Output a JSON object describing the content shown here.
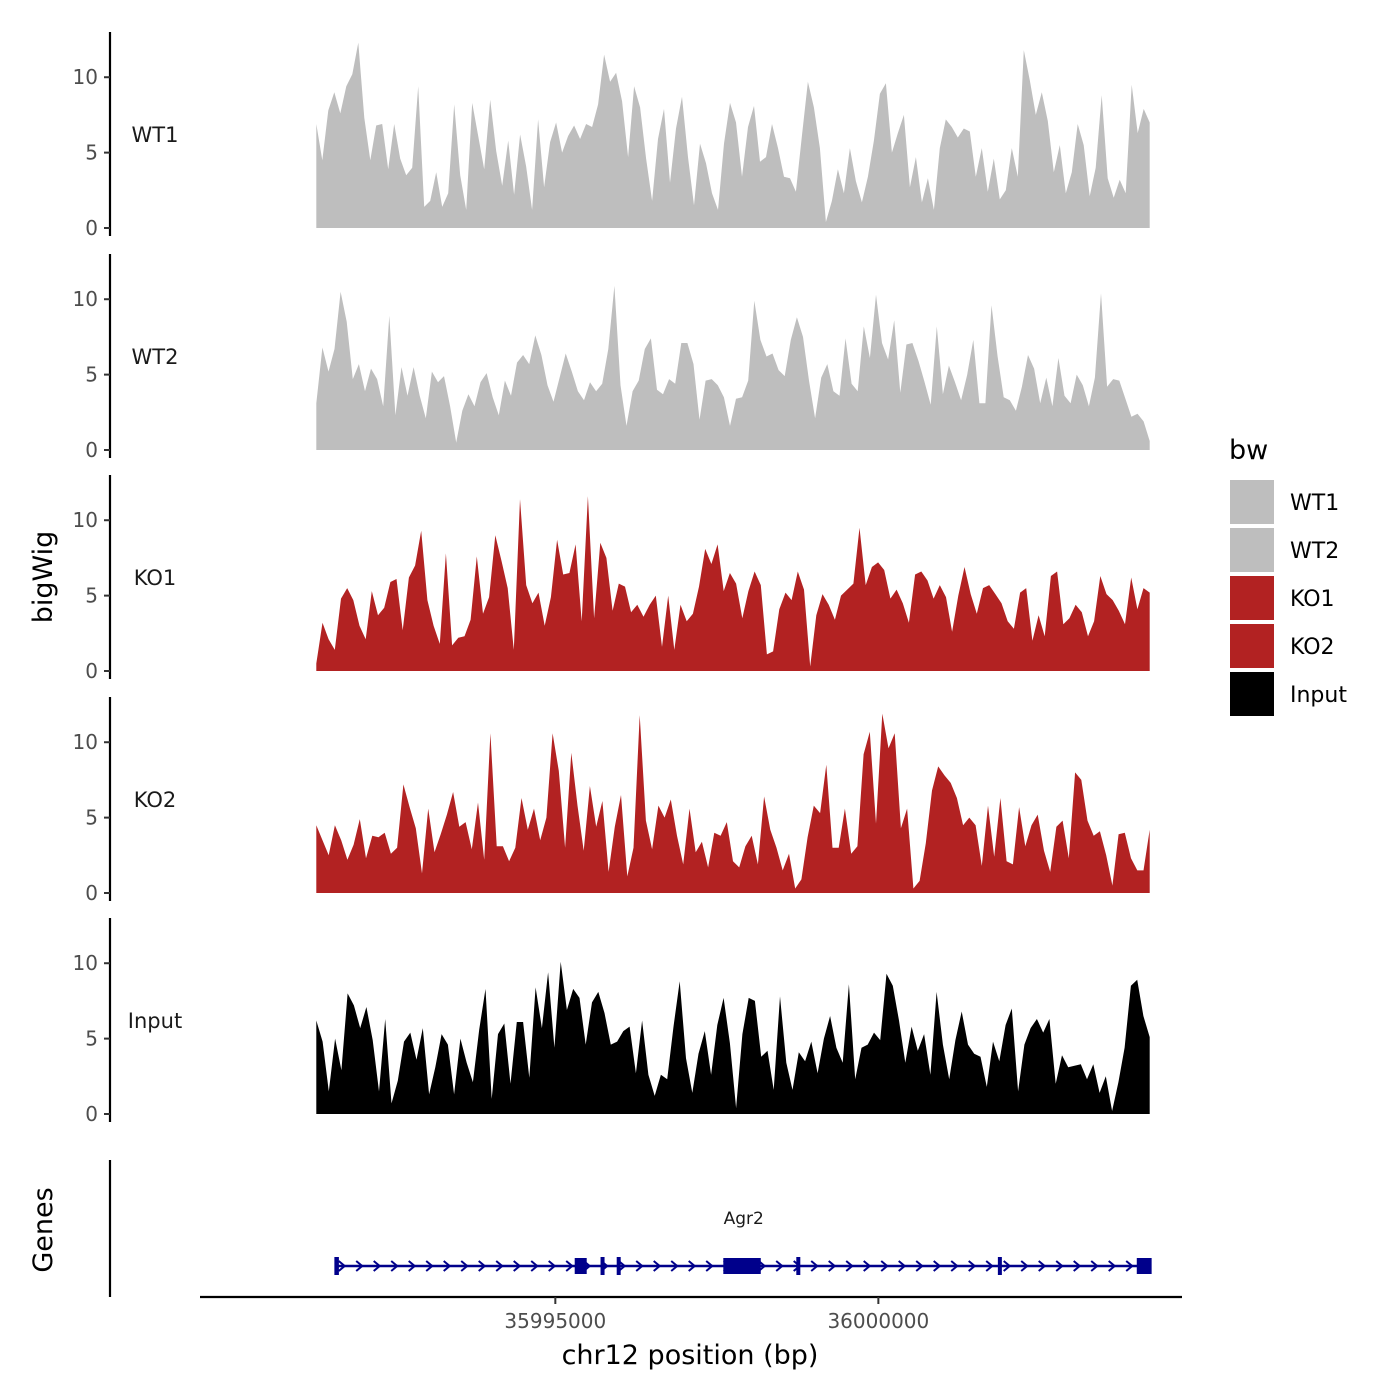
{
  "chart_data": {
    "type": "area",
    "x_unit": "chr12 position (bp)",
    "xlim": [
      35989500,
      36004700
    ],
    "region": [
      35991300,
      36004200
    ],
    "ylim": [
      0,
      13
    ],
    "y_ticks": [
      0,
      5,
      10
    ],
    "x_ticks": [
      35995000,
      36000000
    ],
    "x_tick_labels": [
      "35995000",
      "36000000"
    ],
    "xlabel": "chr12 position (bp)",
    "ylabel_tracks": "bigWig",
    "ylabel_genes": "Genes",
    "legend": {
      "title": "bw",
      "entries": [
        {
          "label": "WT1",
          "color": "#bebebe"
        },
        {
          "label": "WT2",
          "color": "#bebebe"
        },
        {
          "label": "KO1",
          "color": "#b22222"
        },
        {
          "label": "KO2",
          "color": "#b22222"
        },
        {
          "label": "Input",
          "color": "#000000"
        }
      ]
    },
    "series": [
      {
        "name": "WT1",
        "color": "#bebebe",
        "values": [
          6.9,
          4.5,
          7.8,
          9.0,
          7.6,
          9.4,
          10.2,
          12.3,
          7.3,
          4.5,
          6.8,
          6.9,
          3.9,
          6.9,
          4.6,
          3.5,
          4.0,
          9.4,
          1.4,
          1.8,
          3.7,
          1.4,
          2.3,
          8.2,
          3.5,
          1.2,
          8.3,
          6.1,
          3.9,
          8.5,
          5.1,
          2.8,
          5.8,
          2.2,
          6.2,
          4.1,
          1.2,
          7.2,
          2.7,
          5.7,
          7.0,
          5.0,
          6.1,
          6.8,
          5.9,
          6.9,
          6.7,
          8.2,
          11.5,
          9.7,
          10.3,
          8.4,
          4.7,
          9.4,
          8.0,
          4.6,
          1.8,
          5.9,
          7.9,
          3.0,
          6.6,
          8.7,
          4.7,
          1.5,
          5.6,
          4.3,
          2.3,
          1.2,
          5.6,
          8.3,
          7.0,
          3.4,
          6.7,
          8.1,
          4.4,
          4.7,
          6.9,
          5.3,
          3.4,
          3.3,
          2.4,
          6.1,
          9.7,
          8.0,
          5.3,
          0.4,
          1.8,
          3.9,
          2.3,
          5.3,
          3.1,
          1.7,
          3.4,
          5.8,
          8.9,
          9.6,
          5.0,
          6.3,
          7.5,
          2.7,
          4.7,
          1.7,
          3.3,
          1.2,
          5.3,
          7.2,
          6.7,
          6.0,
          6.6,
          6.4,
          3.4,
          5.3,
          2.4,
          4.6,
          1.9,
          2.5,
          5.3,
          3.4,
          11.8,
          9.8,
          7.5,
          9.0,
          7.1,
          3.7,
          5.5,
          2.3,
          3.7,
          6.9,
          5.5,
          2.1,
          4.0,
          8.8,
          3.3,
          2.0,
          3.2,
          2.3,
          9.5,
          6.3,
          7.9,
          7.0
        ]
      },
      {
        "name": "WT2",
        "color": "#bebebe",
        "values": [
          3.1,
          6.8,
          5.2,
          6.7,
          10.5,
          8.5,
          4.7,
          5.7,
          3.9,
          5.4,
          4.7,
          2.9,
          8.9,
          2.3,
          5.5,
          3.6,
          5.5,
          3.6,
          2.1,
          5.2,
          4.5,
          4.9,
          2.9,
          0.5,
          2.6,
          3.7,
          2.9,
          4.5,
          5.1,
          3.5,
          2.3,
          4.6,
          3.6,
          5.8,
          6.3,
          5.7,
          7.6,
          6.3,
          4.3,
          3.2,
          4.8,
          6.4,
          5.2,
          3.9,
          3.3,
          4.5,
          3.9,
          4.4,
          6.7,
          10.9,
          4.3,
          1.6,
          3.9,
          4.6,
          6.7,
          7.4,
          4.0,
          3.7,
          4.7,
          4.4,
          7.1,
          7.1,
          5.7,
          2.0,
          4.6,
          4.7,
          4.3,
          3.5,
          1.6,
          3.4,
          3.5,
          4.6,
          9.9,
          7.3,
          6.2,
          6.4,
          5.3,
          4.9,
          7.3,
          8.8,
          7.5,
          4.6,
          2.1,
          4.8,
          5.7,
          3.9,
          3.6,
          7.4,
          4.4,
          3.9,
          8.2,
          6.1,
          10.3,
          7.1,
          6.0,
          8.6,
          3.8,
          7.0,
          7.1,
          5.9,
          4.5,
          3.0,
          8.2,
          3.7,
          5.6,
          4.5,
          3.3,
          5.0,
          7.3,
          3.1,
          3.1,
          9.6,
          6.2,
          3.5,
          3.3,
          2.6,
          4.2,
          6.3,
          5.4,
          3.1,
          4.8,
          2.9,
          6.1,
          3.6,
          3.1,
          5.0,
          4.3,
          2.9,
          4.8,
          10.4,
          4.2,
          4.7,
          4.6,
          3.4,
          2.2,
          2.4,
          1.9,
          0.6
        ]
      },
      {
        "name": "KO1",
        "color": "#b22222",
        "values": [
          0.5,
          3.2,
          2.1,
          1.4,
          4.8,
          5.5,
          4.7,
          3.0,
          2.1,
          5.3,
          3.7,
          4.2,
          5.9,
          6.1,
          2.7,
          6.2,
          7.0,
          9.3,
          4.7,
          3.0,
          1.8,
          7.8,
          1.7,
          2.2,
          2.3,
          3.4,
          7.6,
          3.8,
          4.9,
          9.0,
          7.3,
          5.5,
          1.4,
          11.4,
          5.7,
          4.5,
          5.2,
          3.0,
          4.9,
          8.7,
          6.4,
          6.5,
          8.4,
          3.3,
          11.6,
          3.5,
          8.5,
          7.5,
          4.0,
          5.8,
          5.6,
          3.9,
          4.4,
          3.6,
          4.4,
          5.0,
          1.6,
          5.0,
          1.4,
          4.4,
          3.3,
          3.8,
          5.6,
          8.1,
          7.1,
          8.4,
          5.3,
          6.5,
          5.8,
          3.5,
          5.3,
          6.6,
          5.7,
          1.1,
          1.3,
          4.1,
          5.2,
          4.7,
          6.6,
          5.4,
          0.3,
          3.7,
          5.1,
          4.4,
          3.4,
          5.0,
          5.4,
          5.8,
          9.5,
          5.7,
          6.9,
          7.2,
          6.7,
          4.8,
          5.4,
          4.5,
          3.2,
          6.4,
          6.6,
          6.0,
          4.8,
          5.7,
          4.9,
          2.6,
          5.0,
          6.9,
          5.1,
          3.8,
          5.5,
          5.7,
          5.1,
          4.5,
          3.3,
          2.8,
          5.2,
          5.5,
          2.0,
          3.7,
          2.3,
          6.3,
          6.6,
          3.1,
          3.5,
          4.4,
          3.9,
          2.3,
          3.3,
          6.3,
          5.1,
          4.7,
          4.0,
          3.1,
          6.2,
          4.1,
          5.5,
          5.2
        ]
      },
      {
        "name": "KO2",
        "color": "#b22222",
        "values": [
          4.5,
          3.5,
          2.5,
          4.5,
          3.5,
          2.2,
          3.2,
          4.9,
          2.3,
          3.8,
          3.7,
          4.0,
          2.6,
          3.0,
          7.2,
          5.7,
          4.3,
          1.3,
          5.6,
          2.7,
          3.9,
          5.2,
          6.7,
          4.4,
          4.7,
          2.9,
          6.0,
          2.2,
          10.6,
          3.1,
          3.1,
          2.1,
          3.0,
          6.3,
          4.2,
          5.6,
          3.5,
          5.0,
          10.6,
          8.1,
          3.0,
          9.3,
          5.8,
          2.8,
          7.1,
          4.4,
          6.1,
          1.4,
          4.4,
          6.5,
          1.1,
          3.0,
          11.8,
          4.8,
          2.9,
          5.8,
          5.0,
          6.2,
          3.8,
          1.9,
          5.6,
          2.7,
          3.4,
          1.7,
          4.0,
          3.8,
          4.7,
          2.1,
          1.7,
          3.1,
          3.8,
          1.9,
          6.4,
          4.2,
          3.0,
          1.5,
          2.6,
          0.3,
          0.9,
          3.7,
          5.8,
          5.3,
          8.5,
          3.0,
          3.0,
          5.6,
          2.6,
          3.1,
          9.2,
          10.7,
          4.6,
          11.9,
          9.6,
          10.6,
          4.3,
          5.6,
          0.3,
          0.8,
          3.3,
          6.8,
          8.4,
          7.8,
          7.3,
          6.3,
          4.5,
          5.0,
          4.5,
          1.8,
          5.8,
          2.4,
          6.3,
          2.1,
          1.9,
          5.7,
          3.1,
          4.5,
          5.2,
          2.8,
          1.4,
          4.4,
          4.8,
          2.3,
          8.0,
          7.5,
          4.8,
          3.8,
          4.1,
          2.5,
          0.5,
          3.9,
          4.0,
          2.3,
          1.5,
          1.5,
          4.2
        ]
      },
      {
        "name": "Input",
        "color": "#000000",
        "values": [
          6.2,
          4.8,
          1.5,
          5.0,
          2.9,
          8.0,
          7.2,
          5.7,
          7.1,
          4.9,
          1.5,
          6.3,
          0.7,
          2.2,
          4.8,
          5.4,
          3.6,
          5.7,
          1.3,
          3.1,
          5.3,
          4.6,
          1.3,
          5.0,
          3.4,
          2.1,
          5.6,
          8.3,
          1.0,
          5.3,
          6.0,
          2.0,
          6.1,
          6.1,
          2.4,
          8.4,
          5.7,
          9.4,
          4.4,
          10.1,
          6.9,
          8.3,
          7.7,
          4.6,
          7.4,
          8.1,
          6.7,
          4.6,
          4.8,
          5.5,
          5.8,
          2.7,
          6.2,
          2.6,
          1.2,
          2.6,
          2.3,
          5.8,
          8.8,
          3.7,
          1.4,
          4.0,
          5.5,
          2.6,
          5.9,
          7.7,
          4.7,
          0.4,
          5.3,
          7.7,
          7.5,
          3.8,
          4.2,
          1.6,
          7.8,
          3.4,
          1.6,
          4.1,
          3.5,
          4.8,
          2.7,
          5.0,
          6.5,
          4.4,
          3.4,
          8.6,
          2.3,
          4.4,
          4.6,
          5.4,
          4.9,
          9.3,
          8.5,
          6.2,
          3.4,
          5.8,
          4.2,
          5.3,
          2.6,
          8.1,
          4.6,
          2.3,
          4.9,
          6.8,
          4.6,
          4.0,
          3.8,
          1.8,
          4.8,
          3.5,
          5.9,
          7.0,
          1.5,
          4.6,
          5.7,
          6.3,
          5.4,
          6.3,
          2.0,
          3.9,
          3.1,
          3.2,
          3.3,
          2.3,
          3.3,
          1.4,
          2.5,
          0.2,
          2.1,
          4.4,
          8.5,
          8.9,
          6.5,
          5.1
        ]
      }
    ],
    "genes": [
      {
        "name": "Agr2",
        "strand": "+",
        "start": 35991600,
        "end": 36004200,
        "color": "#00008b",
        "exons": [
          {
            "start": 35991580,
            "end": 35991650,
            "kind": "tick"
          },
          {
            "start": 35995300,
            "end": 35995480,
            "kind": "box"
          },
          {
            "start": 35995700,
            "end": 35995760,
            "kind": "tick"
          },
          {
            "start": 35995950,
            "end": 35996010,
            "kind": "tick"
          },
          {
            "start": 35997600,
            "end": 35998180,
            "kind": "box"
          },
          {
            "start": 35998730,
            "end": 35998790,
            "kind": "tick"
          },
          {
            "start": 36001850,
            "end": 36001910,
            "kind": "tick"
          },
          {
            "start": 36004000,
            "end": 36004230,
            "kind": "box"
          }
        ]
      }
    ]
  }
}
